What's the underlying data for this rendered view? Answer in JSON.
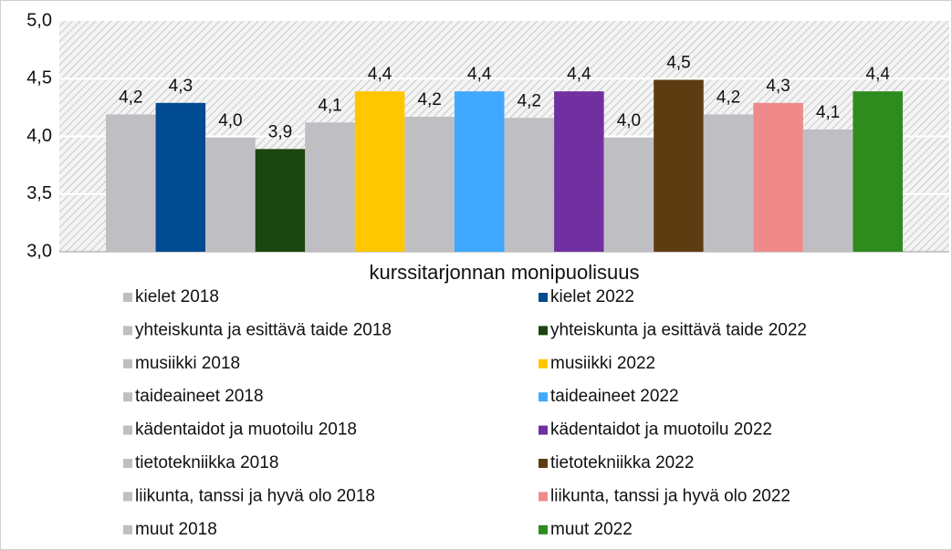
{
  "chart_data": {
    "type": "bar",
    "categories": [
      "kurssitarjonnan monipuolisuus"
    ],
    "ylim": [
      3.0,
      5.0
    ],
    "yticks": [
      {
        "value": 3.0,
        "label": "3,0"
      },
      {
        "value": 3.5,
        "label": "3,5"
      },
      {
        "value": 4.0,
        "label": "4,0"
      },
      {
        "value": 4.5,
        "label": "4,5"
      },
      {
        "value": 5.0,
        "label": "5,0"
      }
    ],
    "grid": true,
    "legend": "bottom",
    "series": [
      {
        "name": "kielet 2018",
        "color": "#bfbfc3",
        "values": [
          4.19
        ],
        "value_labels": [
          "4,2"
        ]
      },
      {
        "name": "kielet 2022",
        "color": "#004a8f",
        "values": [
          4.29
        ],
        "value_labels": [
          "4,3"
        ]
      },
      {
        "name": "yhteiskunta ja esittävä taide 2018",
        "color": "#bfbfc3",
        "values": [
          3.99
        ],
        "value_labels": [
          "4,0"
        ]
      },
      {
        "name": "yhteiskunta ja esittävä taide 2022",
        "color": "#1a4610",
        "values": [
          3.89
        ],
        "value_labels": [
          "3,9"
        ]
      },
      {
        "name": "musiikki 2018",
        "color": "#bfbfc3",
        "values": [
          4.12
        ],
        "value_labels": [
          "4,1"
        ]
      },
      {
        "name": "musiikki 2022",
        "color": "#ffc700",
        "values": [
          4.39
        ],
        "value_labels": [
          "4,4"
        ]
      },
      {
        "name": "taideaineet 2018",
        "color": "#bfbfc3",
        "values": [
          4.17
        ],
        "value_labels": [
          "4,2"
        ]
      },
      {
        "name": "taideaineet 2022",
        "color": "#40a8ff",
        "values": [
          4.39
        ],
        "value_labels": [
          "4,4"
        ]
      },
      {
        "name": "kädentaidot ja muotoilu 2018",
        "color": "#bfbfc3",
        "values": [
          4.16
        ],
        "value_labels": [
          "4,2"
        ]
      },
      {
        "name": "kädentaidot ja muotoilu 2022",
        "color": "#7030a0",
        "values": [
          4.39
        ],
        "value_labels": [
          "4,4"
        ]
      },
      {
        "name": "tietotekniikka 2018",
        "color": "#bfbfc3",
        "values": [
          3.99
        ],
        "value_labels": [
          "4,0"
        ]
      },
      {
        "name": "tietotekniikka 2022",
        "color": "#5d3c12",
        "values": [
          4.49
        ],
        "value_labels": [
          "4,5"
        ]
      },
      {
        "name": "liikunta, tanssi ja hyvä olo 2018",
        "color": "#bfbfc3",
        "values": [
          4.19
        ],
        "value_labels": [
          "4,2"
        ]
      },
      {
        "name": "liikunta, tanssi ja hyvä olo 2022",
        "color": "#f08a8a",
        "values": [
          4.29
        ],
        "value_labels": [
          "4,3"
        ]
      },
      {
        "name": "muut 2018",
        "color": "#bfbfc3",
        "values": [
          4.06
        ],
        "value_labels": [
          "4,1"
        ]
      },
      {
        "name": "muut 2022",
        "color": "#2e8b1e",
        "values": [
          4.39
        ],
        "value_labels": [
          "4,4"
        ]
      }
    ]
  }
}
